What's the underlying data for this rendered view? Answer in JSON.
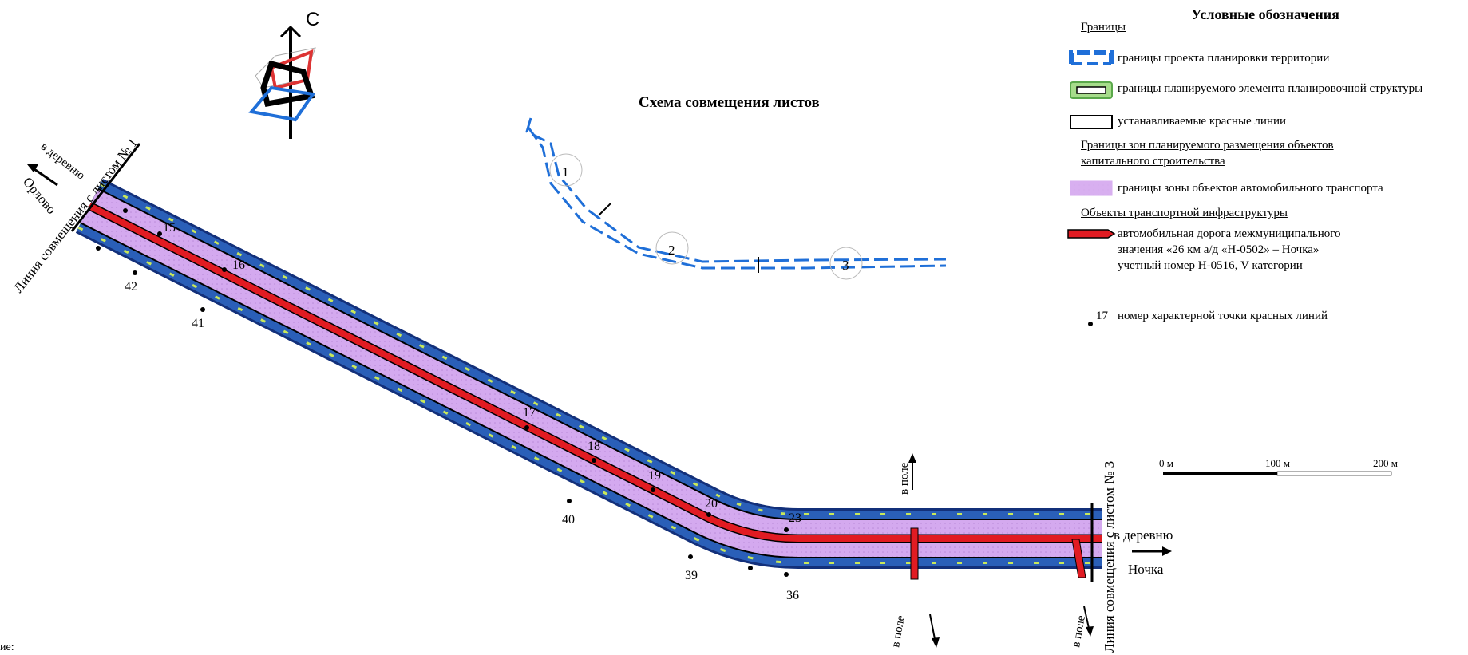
{
  "legend": {
    "title": "Условные обозначения",
    "section_boundaries": "Границы",
    "items_boundaries": [
      {
        "icon": "planning-project-boundary-swatch",
        "label": "границы проекта планировки территории"
      },
      {
        "icon": "planned-element-boundary-swatch",
        "label": "границы планируемого элемента планировочной структуры"
      },
      {
        "icon": "red-line-swatch",
        "label": "устанавливаемые красные линии"
      }
    ],
    "section_zones_line1": "Границы зон планируемого размещения объектов",
    "section_zones_line2": "капитального строительства",
    "item_zone": "границы зоны объектов автомобильного транспорта",
    "section_transport": "Объекты транспортной инфраструктуры",
    "item_road_line1": "автомобильная дорога межмуниципального",
    "item_road_line2": "значения «26 км а/д «Н-0502» – Ночка»",
    "item_road_line3": "учетный номер Н-0516, V категории",
    "point_example_number": "17",
    "item_point": "номер характерной точки красных линий"
  },
  "scheme": {
    "title": "Схема совмещения листов",
    "sheets": [
      "1",
      "2",
      "3"
    ]
  },
  "compass": {
    "north": "С"
  },
  "map": {
    "left_match_line": "Линия совмещения с листом № 1",
    "left_direction_1": "в деревню",
    "left_direction_2": "Орлово",
    "right_match_line": "Линия совмещения с листом № 3",
    "right_direction_1": "в деревню",
    "right_direction_2": "Ночка",
    "field_top": "в поле",
    "field_bottom_1": "в поле",
    "field_bottom_2": "в поле",
    "points": [
      "15",
      "16",
      "17",
      "18",
      "19",
      "20",
      "23",
      "36",
      "39",
      "40",
      "41",
      "42"
    ]
  },
  "scale": {
    "labels": [
      "0 м",
      "100 м",
      "200 м"
    ]
  },
  "bottom_note": "ие:",
  "colors": {
    "road": "#e11b22",
    "zone": "#d8b0f0",
    "boundary_blue": "#1f6fd8",
    "element_green": "#8fd07a",
    "red_line": "#000000"
  }
}
